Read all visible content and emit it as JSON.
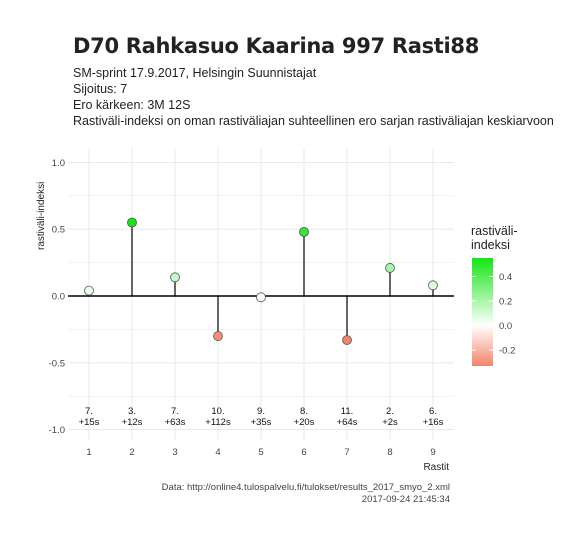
{
  "header": {
    "title": "D70 Rahkasuo Kaarina 997 Rasti88",
    "subtitle_lines": [
      "SM-sprint 17.9.2017, Helsingin Suunnistajat",
      "Sijoitus: 7",
      "Ero kärkeen: 3M 12S",
      "Rastiväli-indeksi on oman rastiväliajan suhteellinen ero sarjan rastiväliajan keskiarvoon"
    ]
  },
  "caption": {
    "source": "Data: http://online4.tulospalvelu.fi/tulokset/results_2017_smyo_2.xml",
    "timestamp": "2017-09-24 21:45:34"
  },
  "legend": {
    "title_line1": "rastiväli-",
    "title_line2": "indeksi",
    "ticks": [
      0.4,
      0.2,
      0.0,
      -0.2
    ],
    "tick_labels": [
      "0.4",
      "0.2",
      "0.0",
      "-0.2"
    ],
    "range": [
      -0.33,
      0.55
    ]
  },
  "colors": {
    "low": "#f4836a",
    "mid": "#ffffff",
    "high": "#14e614",
    "grid": "#e6e6e6",
    "stem": "#000000"
  },
  "chart_data": {
    "type": "lollipop",
    "xlabel": "Rastit",
    "ylabel": "rastiväli-indeksi",
    "ylim": [
      -1.0,
      1.0
    ],
    "y_ticks": [
      -1.0,
      -0.5,
      0.0,
      0.5,
      1.0
    ],
    "y_tick_labels": [
      "-1.0",
      "-0.5",
      "0.0",
      "0.5",
      "1.0"
    ],
    "x": [
      1,
      2,
      3,
      4,
      5,
      6,
      7,
      8,
      9
    ],
    "x_tick_labels": [
      "1",
      "2",
      "3",
      "4",
      "5",
      "6",
      "7",
      "8",
      "9"
    ],
    "values": [
      0.04,
      0.55,
      0.14,
      -0.3,
      -0.01,
      0.48,
      -0.33,
      0.21,
      0.08
    ],
    "annotations": [
      {
        "rank": "7.",
        "diff": "+15s"
      },
      {
        "rank": "3.",
        "diff": "+12s"
      },
      {
        "rank": "7.",
        "diff": "+63s"
      },
      {
        "rank": "10.",
        "diff": "+112s"
      },
      {
        "rank": "9.",
        "diff": "+35s"
      },
      {
        "rank": "8.",
        "diff": "+20s"
      },
      {
        "rank": "11.",
        "diff": "+64s"
      },
      {
        "rank": "2.",
        "diff": "+2s"
      },
      {
        "rank": "6.",
        "diff": "+16s"
      }
    ],
    "grid": true
  }
}
